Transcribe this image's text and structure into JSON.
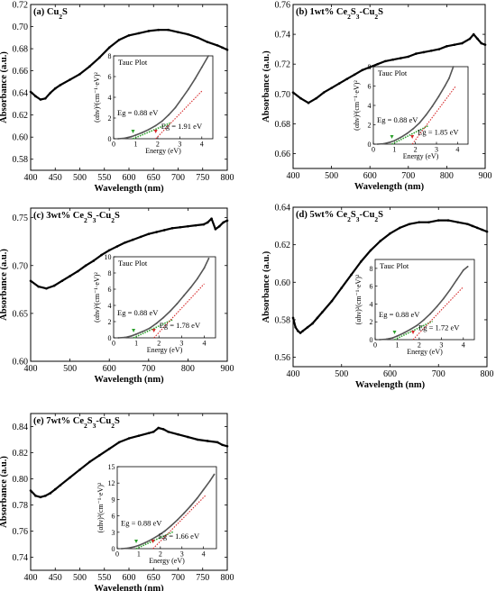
{
  "figure": {
    "panels_note": ""
  },
  "chart_data": [
    {
      "type": "line",
      "title": "(a) Cu<sub>2</sub>S",
      "title_parts": [
        "(a) Cu",
        "2",
        "S"
      ],
      "xlabel": "Wavelength (nm)",
      "ylabel": "Absorbance (a.u.)",
      "xlim": [
        400,
        800
      ],
      "ylim": [
        0.57,
        0.72
      ],
      "xticks": [
        400,
        450,
        500,
        550,
        600,
        650,
        700,
        750,
        800
      ],
      "yticks": [
        0.58,
        0.6,
        0.62,
        0.64,
        0.66,
        0.68,
        0.7,
        0.72
      ],
      "yfmt": 2,
      "grid": false,
      "x": [
        400,
        410,
        420,
        430,
        440,
        450,
        460,
        480,
        500,
        520,
        540,
        560,
        580,
        600,
        620,
        640,
        660,
        680,
        700,
        720,
        740,
        760,
        780,
        790,
        800
      ],
      "y": [
        0.641,
        0.637,
        0.634,
        0.635,
        0.64,
        0.644,
        0.647,
        0.652,
        0.657,
        0.664,
        0.672,
        0.681,
        0.688,
        0.692,
        0.694,
        0.696,
        0.697,
        0.697,
        0.695,
        0.693,
        0.69,
        0.686,
        0.683,
        0.681,
        0.679
      ],
      "inset": {
        "title": "Tauc Plot",
        "xlabel": "Energy (eV)",
        "ylabel": "(αhν)²(cm⁻¹·eV)²",
        "xlim": [
          0,
          4.5
        ],
        "ylim": [
          0,
          8
        ],
        "xticks": [
          0,
          1,
          2,
          3,
          4
        ],
        "yticks": [
          0,
          2,
          4,
          6,
          8
        ],
        "x": [
          0.2,
          0.5,
          0.8,
          1.0,
          1.3,
          1.6,
          1.9,
          2.2,
          2.5,
          2.8,
          3.1,
          3.4,
          3.7,
          4.0,
          4.3
        ],
        "y": [
          0.0,
          0.05,
          0.2,
          0.35,
          0.6,
          0.9,
          1.25,
          1.7,
          2.3,
          3.0,
          3.9,
          4.8,
          5.8,
          6.9,
          8.0
        ],
        "eg1": "Eg = 0.88 eV",
        "eg2": "Eg = 1.91 eV",
        "eg1_value": 0.88,
        "eg2_value": 1.91,
        "eg1_slope": 0.9,
        "eg2_slope": 2.2
      }
    },
    {
      "type": "line",
      "title_parts": [
        "(b) 1wt% Ce",
        "2",
        "S",
        "3",
        "-Cu",
        "2",
        "S"
      ],
      "xlabel": "Wavelength (nm)",
      "ylabel": "Absorbance (a.u.)",
      "xlim": [
        400,
        900
      ],
      "ylim": [
        0.65,
        0.76
      ],
      "xticks": [
        400,
        500,
        600,
        700,
        800,
        900
      ],
      "yticks": [
        0.66,
        0.68,
        0.7,
        0.72,
        0.74,
        0.76
      ],
      "yfmt": 2,
      "grid": false,
      "x": [
        400,
        420,
        440,
        460,
        480,
        500,
        520,
        540,
        560,
        580,
        600,
        620,
        640,
        660,
        680,
        700,
        720,
        740,
        760,
        780,
        800,
        820,
        840,
        860,
        870,
        880,
        890,
        900
      ],
      "y": [
        0.701,
        0.697,
        0.694,
        0.697,
        0.701,
        0.704,
        0.707,
        0.71,
        0.713,
        0.716,
        0.718,
        0.72,
        0.722,
        0.723,
        0.724,
        0.725,
        0.727,
        0.728,
        0.729,
        0.73,
        0.732,
        0.733,
        0.734,
        0.737,
        0.74,
        0.737,
        0.734,
        0.733
      ],
      "inset": {
        "title": "Tauc Plot",
        "xlabel": "Energy (eV)",
        "ylabel": "(αhν)²(cm⁻¹·eV)²",
        "xlim": [
          0,
          4.5
        ],
        "ylim": [
          0,
          8
        ],
        "xticks": [
          0,
          1,
          2,
          3,
          4
        ],
        "yticks": [
          0,
          2,
          4,
          6,
          8
        ],
        "x": [
          0.2,
          0.5,
          0.8,
          1.0,
          1.3,
          1.6,
          1.9,
          2.2,
          2.5,
          2.8,
          3.1,
          3.4,
          3.6,
          3.8
        ],
        "y": [
          0.0,
          0.05,
          0.2,
          0.35,
          0.7,
          1.1,
          1.6,
          2.2,
          3.0,
          3.9,
          4.9,
          6.0,
          6.8,
          8.0
        ],
        "eg1": "Eg = 0.88 eV",
        "eg2": "Eg = 1.85 eV",
        "eg1_value": 0.88,
        "eg2_value": 1.85,
        "eg1_slope": 1.1,
        "eg2_slope": 2.9
      }
    },
    {
      "type": "line",
      "title_parts": [
        "(c) 3wt% Ce",
        "2",
        "S",
        "3",
        "-Cu",
        "2",
        "S"
      ],
      "xlabel": "Wavelength (nm)",
      "ylabel": "Absorbance (a.u.)",
      "xlim": [
        400,
        900
      ],
      "ylim": [
        0.6,
        0.76
      ],
      "xticks": [
        400,
        500,
        600,
        700,
        800,
        900
      ],
      "yticks": [
        0.6,
        0.65,
        0.7,
        0.75
      ],
      "yfmt": 2,
      "grid": false,
      "x": [
        400,
        420,
        440,
        460,
        480,
        500,
        520,
        540,
        560,
        580,
        600,
        620,
        640,
        660,
        680,
        700,
        720,
        740,
        760,
        780,
        800,
        820,
        840,
        850,
        860,
        870,
        880,
        890,
        900
      ],
      "y": [
        0.684,
        0.678,
        0.676,
        0.679,
        0.684,
        0.689,
        0.694,
        0.7,
        0.705,
        0.711,
        0.716,
        0.72,
        0.724,
        0.727,
        0.73,
        0.733,
        0.735,
        0.737,
        0.739,
        0.74,
        0.741,
        0.742,
        0.743,
        0.745,
        0.749,
        0.738,
        0.741,
        0.745,
        0.747
      ],
      "inset": {
        "title": "Tauc Plot",
        "xlabel": "Energy (eV)",
        "ylabel": "(αhν)²(cm⁻¹·eV)²",
        "xlim": [
          0,
          4.5
        ],
        "ylim": [
          0,
          10
        ],
        "xticks": [
          0,
          1,
          2,
          3,
          4
        ],
        "yticks": [
          0,
          2,
          4,
          6,
          8,
          10
        ],
        "x": [
          0.2,
          0.5,
          0.8,
          1.0,
          1.3,
          1.6,
          1.9,
          2.2,
          2.5,
          2.8,
          3.1,
          3.4,
          3.7,
          4.0,
          4.2
        ],
        "y": [
          0.0,
          0.05,
          0.25,
          0.45,
          0.8,
          1.2,
          1.8,
          2.5,
          3.3,
          4.2,
          5.2,
          6.2,
          7.3,
          8.6,
          9.8
        ],
        "eg1": "Eg = 0.88 eV",
        "eg2": "Eg = 1.78 eV",
        "eg1_value": 0.88,
        "eg2_value": 1.78,
        "eg1_slope": 1.3,
        "eg2_slope": 3.0
      }
    },
    {
      "type": "line",
      "title_parts": [
        "(d) 5wt% Ce",
        "2",
        "S",
        "3",
        "-Cu",
        "2",
        "S"
      ],
      "xlabel": "Wavelength (nm)",
      "ylabel": "Absorbance (a.u.)",
      "xlim": [
        400,
        800
      ],
      "ylim": [
        0.555,
        0.64
      ],
      "xticks": [
        400,
        500,
        600,
        700,
        800
      ],
      "yticks": [
        0.56,
        0.58,
        0.6,
        0.62,
        0.64
      ],
      "yfmt": 2,
      "grid": false,
      "x": [
        400,
        405,
        410,
        415,
        420,
        430,
        440,
        450,
        460,
        480,
        500,
        520,
        540,
        560,
        580,
        600,
        620,
        640,
        660,
        680,
        700,
        720,
        740,
        760,
        770,
        780,
        790,
        800
      ],
      "y": [
        0.581,
        0.576,
        0.574,
        0.573,
        0.574,
        0.576,
        0.578,
        0.581,
        0.584,
        0.59,
        0.597,
        0.604,
        0.611,
        0.617,
        0.622,
        0.626,
        0.629,
        0.631,
        0.632,
        0.632,
        0.633,
        0.633,
        0.632,
        0.631,
        0.63,
        0.629,
        0.628,
        0.627
      ],
      "inset": {
        "title": "Tauc Plot",
        "xlabel": "Energy (eV)",
        "ylabel": "(αhν)²(cm⁻¹·eV)²",
        "xlim": [
          0,
          4.5
        ],
        "ylim": [
          0,
          9
        ],
        "xticks": [
          0,
          1,
          2,
          3,
          4
        ],
        "yticks": [
          0,
          2,
          4,
          6,
          8
        ],
        "x": [
          0.2,
          0.5,
          0.8,
          1.0,
          1.3,
          1.6,
          1.9,
          2.2,
          2.5,
          2.8,
          3.1,
          3.4,
          3.7,
          4.0,
          4.2
        ],
        "y": [
          0.0,
          0.05,
          0.2,
          0.4,
          0.75,
          1.15,
          1.6,
          2.2,
          2.9,
          3.7,
          4.6,
          5.6,
          6.7,
          7.8,
          8.2
        ],
        "eg1": "Eg = 0.88 eV",
        "eg2": "Eg = 1.72 eV",
        "eg1_value": 0.88,
        "eg2_value": 1.72,
        "eg1_slope": 1.2,
        "eg2_slope": 2.6
      }
    },
    {
      "type": "line",
      "title_parts": [
        "(e) 7wt% Ce",
        "2",
        "S",
        "3",
        "-Cu",
        "2",
        "S"
      ],
      "xlabel": "Wavelength (nm)",
      "ylabel": "Absorbance (a.u.)",
      "xlim": [
        400,
        800
      ],
      "ylim": [
        0.73,
        0.85
      ],
      "xticks": [
        400,
        450,
        500,
        550,
        600,
        650,
        700,
        750,
        800
      ],
      "yticks": [
        0.74,
        0.76,
        0.78,
        0.8,
        0.82,
        0.84
      ],
      "yfmt": 2,
      "grid": false,
      "x": [
        400,
        410,
        420,
        430,
        440,
        450,
        460,
        480,
        500,
        520,
        540,
        560,
        580,
        600,
        620,
        640,
        650,
        660,
        670,
        680,
        700,
        720,
        740,
        760,
        780,
        790,
        800
      ],
      "y": [
        0.791,
        0.787,
        0.786,
        0.787,
        0.789,
        0.792,
        0.795,
        0.801,
        0.807,
        0.813,
        0.818,
        0.823,
        0.828,
        0.831,
        0.833,
        0.835,
        0.836,
        0.839,
        0.838,
        0.836,
        0.834,
        0.832,
        0.83,
        0.829,
        0.828,
        0.826,
        0.825
      ],
      "inset": {
        "title": "",
        "xlabel": "Energy (eV)",
        "ylabel": "(αhν)²(cm⁻¹·eV)²",
        "xlim": [
          0,
          4.6
        ],
        "ylim": [
          0,
          15
        ],
        "xticks": [
          0,
          1,
          2,
          3,
          4
        ],
        "yticks": [
          0,
          3,
          6,
          9,
          12,
          15
        ],
        "x": [
          0.2,
          0.5,
          0.8,
          1.0,
          1.3,
          1.6,
          1.9,
          2.2,
          2.5,
          2.8,
          3.1,
          3.4,
          3.7,
          4.0,
          4.3,
          4.5
        ],
        "y": [
          0.0,
          0.1,
          0.35,
          0.6,
          1.1,
          1.7,
          2.4,
          3.2,
          4.2,
          5.3,
          6.5,
          7.8,
          9.2,
          10.8,
          12.4,
          13.6
        ],
        "eg1": "Eg = 0.88 eV",
        "eg2": "Eg = 1.66 eV",
        "eg1_value": 0.88,
        "eg2_value": 1.66,
        "eg1_slope": 1.8,
        "eg2_slope": 4.0
      }
    }
  ],
  "colors": {
    "main_curve": "#000000",
    "tauc_curve": "#555555",
    "tauc_fit_low": "#2ca02c",
    "tauc_fit_high": "#d62728"
  }
}
